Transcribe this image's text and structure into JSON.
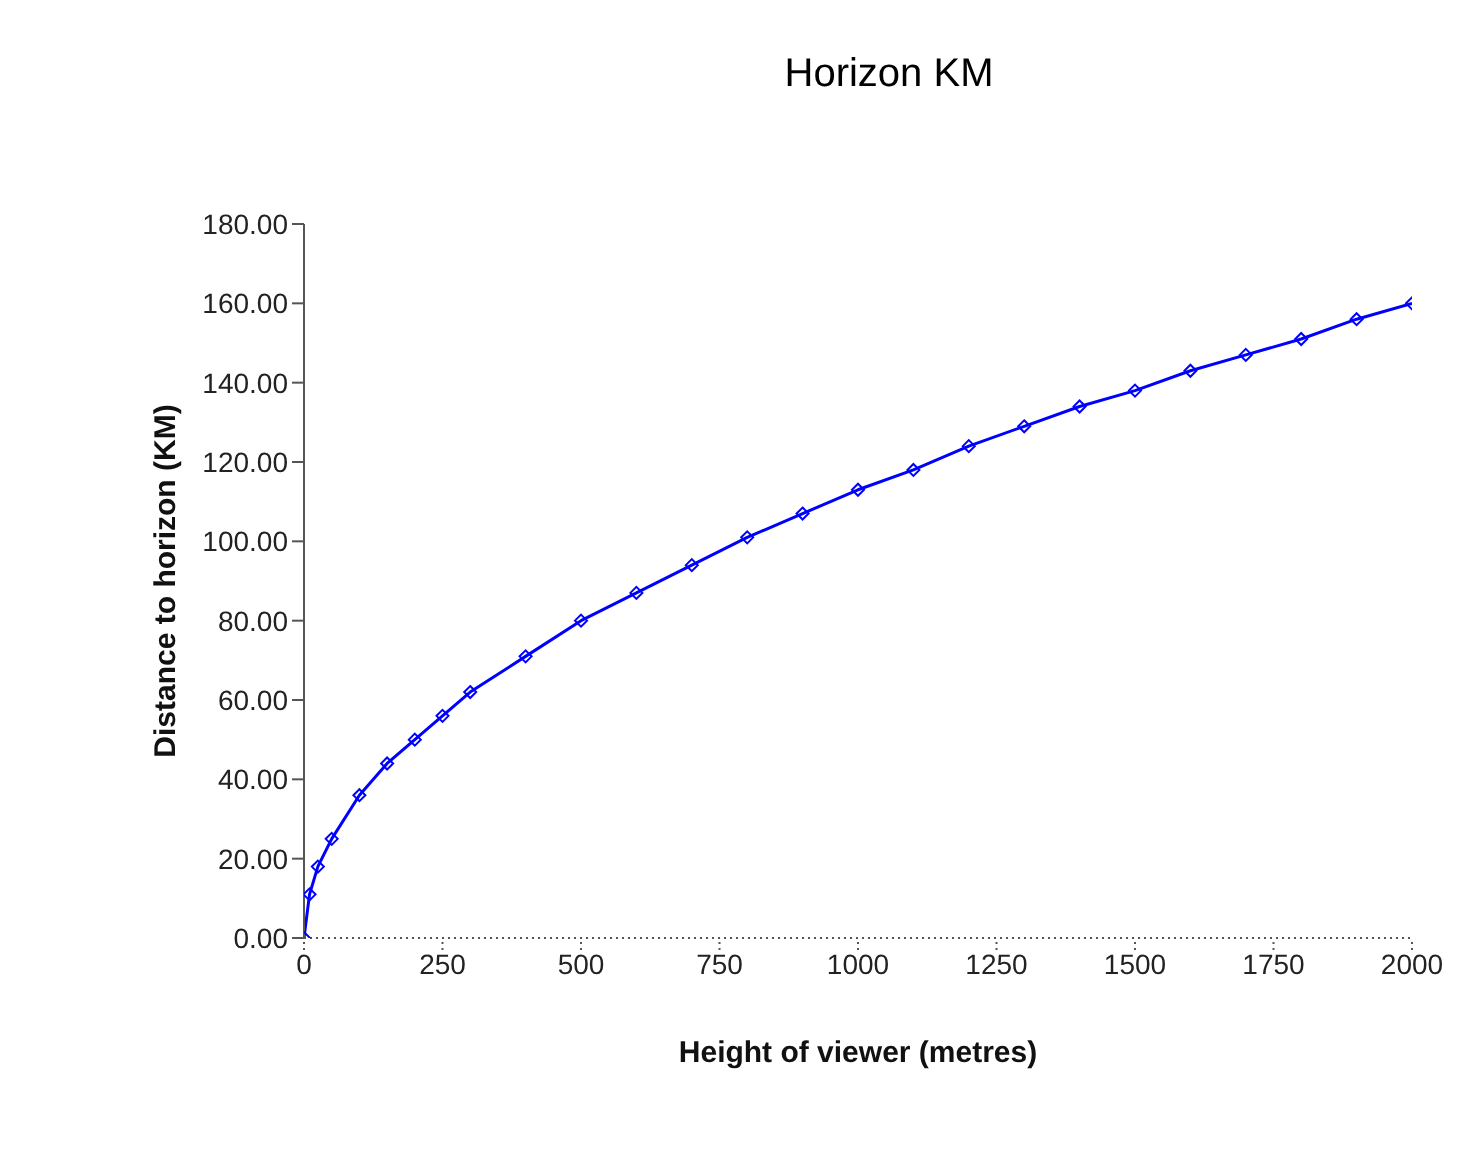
{
  "chart_data": {
    "type": "line",
    "title": "Horizon KM",
    "xlabel": "Height of viewer (metres)",
    "ylabel": "Distance to horizon (KM)",
    "x": [
      0,
      10,
      25,
      50,
      100,
      150,
      200,
      250,
      300,
      400,
      500,
      600,
      700,
      800,
      900,
      1000,
      1100,
      1200,
      1300,
      1400,
      1500,
      1600,
      1700,
      1800,
      1900,
      2000
    ],
    "series": [
      {
        "color": "#0000ff",
        "values": [
          0,
          11,
          18,
          25,
          36,
          44,
          50,
          56,
          62,
          71,
          80,
          87,
          94,
          101,
          107,
          113,
          118,
          124,
          129,
          134,
          138,
          143,
          147,
          151,
          156,
          160
        ]
      }
    ],
    "xlim": [
      0,
      2000
    ],
    "xticks": [
      0,
      250,
      500,
      750,
      1000,
      1250,
      1500,
      1750,
      2000
    ],
    "ylim": [
      0,
      180
    ],
    "yticks": [
      {
        "value": 0,
        "label": "0.00"
      },
      {
        "value": 20,
        "label": "20.00"
      },
      {
        "value": 40,
        "label": "40.00"
      },
      {
        "value": 60,
        "label": "60.00"
      },
      {
        "value": 80,
        "label": "80.00"
      },
      {
        "value": 100,
        "label": "100.00"
      },
      {
        "value": 120,
        "label": "120.00"
      },
      {
        "value": 140,
        "label": "140.00"
      },
      {
        "value": 160,
        "label": "160.00"
      },
      {
        "value": 180,
        "label": "180.00"
      }
    ],
    "marker": "diamond",
    "line_style": "solid",
    "grid": false,
    "legend": false
  }
}
